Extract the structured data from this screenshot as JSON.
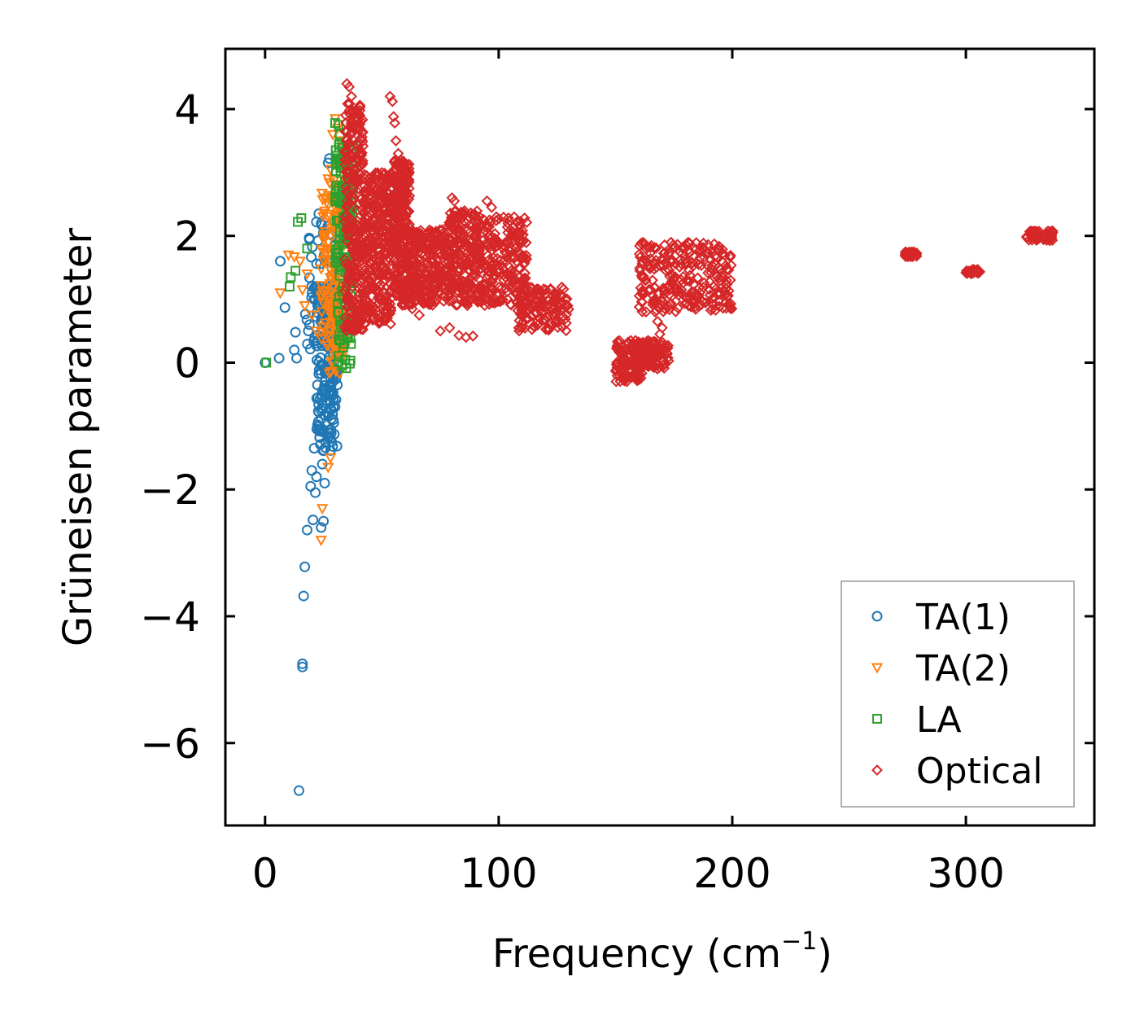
{
  "chart_data": {
    "type": "scatter",
    "title": "",
    "xlabel": "Frequency (cm",
    "xlabel_superscript": "−1",
    "xlabel_suffix": ")",
    "ylabel": "Grüneisen parameter",
    "xlim": [
      -17,
      355
    ],
    "ylim": [
      -7.3,
      4.95
    ],
    "x_ticks": [
      0,
      100,
      200,
      300
    ],
    "x_tick_labels": [
      "0",
      "100",
      "200",
      "300"
    ],
    "y_ticks": [
      4,
      2,
      0,
      -2,
      -4,
      -6
    ],
    "y_tick_labels": [
      "4",
      "2",
      "0",
      "−2",
      "−4",
      "−6"
    ],
    "grid": false,
    "legend_position": "bottom-right",
    "series": [
      {
        "name": "TA(1)",
        "marker": "circle",
        "color": "#1f77b4",
        "points": [
          [
            0,
            0
          ],
          [
            6,
            0.07
          ],
          [
            6.5,
            1.6
          ],
          [
            8.5,
            0.87
          ],
          [
            12.5,
            0.2
          ],
          [
            13,
            0.48
          ],
          [
            13.5,
            0.07
          ],
          [
            14.5,
            -6.75
          ],
          [
            16,
            -4.75
          ],
          [
            16,
            -4.8
          ],
          [
            16.5,
            -3.68
          ],
          [
            17,
            -3.22
          ],
          [
            18,
            -2.64
          ],
          [
            18.5,
            0.5
          ],
          [
            19,
            0.6
          ],
          [
            19.5,
            -1.95
          ],
          [
            20,
            -1.7
          ],
          [
            20.5,
            -2.48
          ],
          [
            21,
            -1.35
          ],
          [
            21.5,
            -2.05
          ],
          [
            22,
            -1.8
          ],
          [
            22,
            0.72
          ],
          [
            22.5,
            0.9
          ],
          [
            23,
            -0.78
          ],
          [
            23.5,
            1.2
          ],
          [
            24,
            -2.6
          ],
          [
            24.5,
            -1.6
          ],
          [
            25,
            -2.5
          ],
          [
            25.5,
            -1.9
          ],
          [
            26,
            -1.25
          ],
          [
            26.5,
            0.3
          ],
          [
            27,
            3.15
          ],
          [
            27.5,
            3.22
          ],
          [
            28,
            -0.5
          ],
          [
            28.5,
            1.5
          ],
          [
            29,
            2.0
          ],
          [
            30,
            0.8
          ],
          [
            31,
            1.25
          ],
          [
            20,
            1.2
          ],
          [
            21,
            1.0
          ],
          [
            23,
            2.35
          ],
          [
            24,
            2.2
          ],
          [
            25,
            0.95
          ],
          [
            26,
            1.1
          ]
        ],
        "clusters": [
          {
            "x": [
              22,
              31
            ],
            "y": [
              -1.4,
              1.2
            ],
            "n": 190
          },
          {
            "x": [
              17,
              31
            ],
            "y": [
              0.2,
              2.3
            ],
            "n": 45
          }
        ]
      },
      {
        "name": "TA(2)",
        "marker": "triangle-down",
        "color": "#ff7f0e",
        "points": [
          [
            6.5,
            1.1
          ],
          [
            10,
            1.7
          ],
          [
            12.5,
            1.67
          ],
          [
            15,
            1.6
          ],
          [
            16,
            1.15
          ],
          [
            17,
            0.9
          ],
          [
            18,
            1.4
          ],
          [
            24,
            -2.8
          ],
          [
            24.5,
            -2.3
          ],
          [
            27,
            -1.65
          ],
          [
            28,
            -1.5
          ],
          [
            29,
            3.6
          ],
          [
            30,
            3.85
          ],
          [
            31,
            3.7
          ],
          [
            32,
            3.5
          ],
          [
            33,
            3.3
          ],
          [
            26,
            2.6
          ],
          [
            27,
            2.9
          ],
          [
            28,
            3.05
          ],
          [
            20,
            0.75
          ],
          [
            22,
            0.5
          ]
        ],
        "clusters": [
          {
            "x": [
              24,
              35
            ],
            "y": [
              0.2,
              2.9
            ],
            "n": 160
          },
          {
            "x": [
              27,
              34
            ],
            "y": [
              -0.2,
              1.2
            ],
            "n": 40
          }
        ]
      },
      {
        "name": "LA",
        "marker": "square",
        "color": "#2ca02c",
        "points": [
          [
            0.5,
            0
          ],
          [
            10.5,
            1.2
          ],
          [
            11,
            1.35
          ],
          [
            13,
            1.45
          ],
          [
            14,
            2.22
          ],
          [
            15.5,
            2.28
          ],
          [
            18,
            1.8
          ],
          [
            30,
            3.78
          ],
          [
            31.5,
            3.75
          ],
          [
            32,
            3.6
          ],
          [
            33,
            3.4
          ],
          [
            35,
            1.6
          ],
          [
            38,
            1.8
          ],
          [
            39.5,
            0.77
          ],
          [
            34,
            0.3
          ],
          [
            35,
            0.4
          ],
          [
            33,
            -0.05
          ]
        ],
        "clusters": [
          {
            "x": [
              30,
              38
            ],
            "y": [
              1.5,
              3.5
            ],
            "n": 110
          },
          {
            "x": [
              31,
              37
            ],
            "y": [
              -0.1,
              1.6
            ],
            "n": 45
          }
        ]
      },
      {
        "name": "Optical",
        "marker": "diamond",
        "color": "#d62728",
        "points": [
          [
            35,
            4.4
          ],
          [
            36,
            4.35
          ],
          [
            37,
            4.2
          ],
          [
            38.5,
            3.92
          ],
          [
            41,
            3.1
          ],
          [
            42.5,
            2.7
          ],
          [
            53.5,
            4.2
          ],
          [
            54.5,
            4.12
          ],
          [
            55,
            3.88
          ],
          [
            55.5,
            3.78
          ],
          [
            56,
            3.5
          ],
          [
            57,
            3.3
          ],
          [
            58,
            1.1
          ],
          [
            60,
            1.05
          ],
          [
            63,
            0.85
          ],
          [
            66,
            0.75
          ],
          [
            75,
            0.5
          ],
          [
            79,
            0.55
          ],
          [
            83,
            0.43
          ],
          [
            86,
            0.4
          ],
          [
            89,
            0.42
          ],
          [
            80,
            2.6
          ],
          [
            81,
            2.55
          ],
          [
            84,
            2.35
          ],
          [
            86,
            2.2
          ],
          [
            95,
            2.55
          ],
          [
            97,
            2.45
          ],
          [
            99,
            2.3
          ],
          [
            163,
            1.3
          ],
          [
            165,
            1.15
          ],
          [
            166,
            0.95
          ],
          [
            167,
            0.8
          ],
          [
            168,
            0.65
          ],
          [
            169,
            0.45
          ],
          [
            170,
            0.55
          ]
        ],
        "clusters": [
          {
            "x": [
              34,
              42
            ],
            "y": [
              0.5,
              4.1
            ],
            "n": 260
          },
          {
            "x": [
              42,
              54
            ],
            "y": [
              0.6,
              3.0
            ],
            "n": 330
          },
          {
            "x": [
              54,
              62
            ],
            "y": [
              0.9,
              3.2
            ],
            "n": 300
          },
          {
            "x": [
              62,
              78
            ],
            "y": [
              0.9,
              2.1
            ],
            "n": 240
          },
          {
            "x": [
              78,
              92
            ],
            "y": [
              0.9,
              2.4
            ],
            "n": 220
          },
          {
            "x": [
              92,
              112
            ],
            "y": [
              0.9,
              2.3
            ],
            "n": 220
          },
          {
            "x": [
              108,
              130
            ],
            "y": [
              0.5,
              1.2
            ],
            "n": 130
          },
          {
            "x": [
              150,
              162
            ],
            "y": [
              -0.3,
              0.35
            ],
            "n": 120
          },
          {
            "x": [
              158,
              173
            ],
            "y": [
              -0.1,
              0.35
            ],
            "n": 90
          },
          {
            "x": [
              160,
              200
            ],
            "y": [
              0.8,
              1.9
            ],
            "n": 260
          },
          {
            "x": [
              274,
              279
            ],
            "y": [
              1.67,
              1.75
            ],
            "n": 35
          },
          {
            "x": [
              300,
              306
            ],
            "y": [
              1.4,
              1.47
            ],
            "n": 35
          },
          {
            "x": [
              326,
              338
            ],
            "y": [
              1.92,
              2.08
            ],
            "n": 55
          }
        ]
      }
    ]
  }
}
